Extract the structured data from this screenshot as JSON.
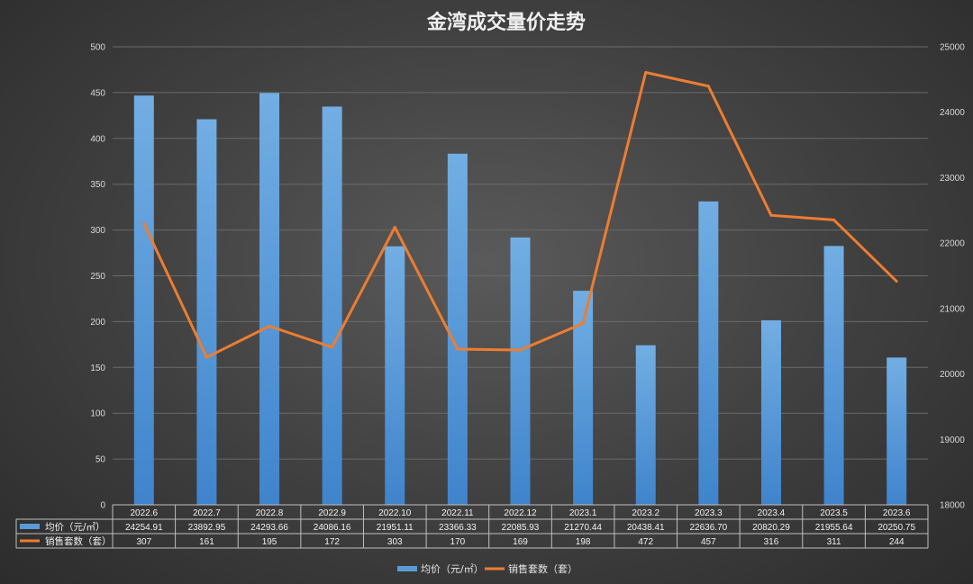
{
  "chart_data": {
    "type": "bar",
    "title": "金湾成交量价走势",
    "categories": [
      "2022.6",
      "2022.7",
      "2022.8",
      "2022.9",
      "2022.10",
      "2022.11",
      "2022.12",
      "2023.1",
      "2023.2",
      "2023.3",
      "2023.4",
      "2023.5",
      "2023.6"
    ],
    "series": [
      {
        "name": "均价（元/㎡）",
        "type": "bar",
        "axis": "right",
        "color": "#5b9bd5",
        "values": [
          24254.91,
          23892.95,
          24293.66,
          24086.16,
          21951.11,
          23366.33,
          22085.93,
          21270.44,
          20438.41,
          22636.7,
          20820.29,
          21955.64,
          20250.75
        ],
        "labels": [
          "24254.91",
          "23892.95",
          "24293.66",
          "24086.16",
          "21951.11",
          "23366.33",
          "22085.93",
          "21270.44",
          "20438.41",
          "22636.70",
          "20820.29",
          "21955.64",
          "20250.75"
        ]
      },
      {
        "name": "销售套数（套）",
        "type": "line",
        "axis": "left",
        "color": "#ed7d31",
        "values": [
          307,
          161,
          195,
          172,
          303,
          170,
          169,
          198,
          472,
          457,
          316,
          311,
          244
        ],
        "labels": [
          "307",
          "161",
          "195",
          "172",
          "303",
          "170",
          "169",
          "198",
          "472",
          "457",
          "316",
          "311",
          "244"
        ]
      }
    ],
    "y_left": {
      "ylim": [
        0,
        500
      ],
      "ticks": [
        "0",
        "50",
        "100",
        "150",
        "200",
        "250",
        "300",
        "350",
        "400",
        "450",
        "500"
      ]
    },
    "y_right": {
      "ylim": [
        18000,
        25000
      ],
      "ticks": [
        "18000",
        "19000",
        "20000",
        "21000",
        "22000",
        "23000",
        "24000",
        "25000"
      ]
    },
    "grid": true,
    "legend": "bottom",
    "data_table": true
  }
}
